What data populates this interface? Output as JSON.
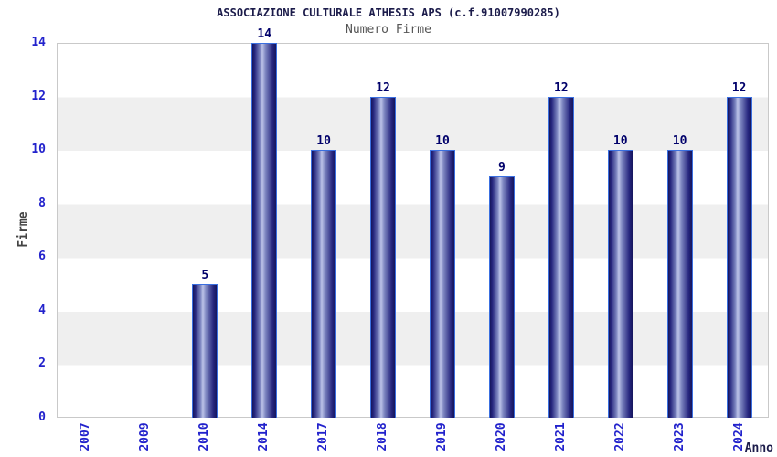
{
  "chart_data": {
    "type": "bar",
    "title": "ASSOCIAZIONE CULTURALE ATHESIS APS (c.f.91007990285)",
    "subtitle": "Numero Firme",
    "xlabel": "Anno",
    "ylabel": "Firme",
    "categories": [
      "2007",
      "2009",
      "2010",
      "2014",
      "2017",
      "2018",
      "2019",
      "2020",
      "2021",
      "2022",
      "2023",
      "2024"
    ],
    "values": [
      0,
      0,
      5,
      14,
      10,
      12,
      10,
      9,
      12,
      10,
      10,
      12
    ],
    "ylim": [
      0,
      14
    ],
    "yticks": [
      0,
      2,
      4,
      6,
      8,
      10,
      12,
      14
    ],
    "bar_value_labels": [
      "5",
      "14",
      "10",
      "12",
      "10",
      "9",
      "12",
      "10",
      "10",
      "12"
    ],
    "grid": "horizontal alternating bands every 2 units, no vertical gridlines",
    "legend_position": "none",
    "colors": {
      "title": "#1b1b4a",
      "subtitle": "#555555",
      "tick_label": "#2222cc",
      "value_label": "#00006a",
      "bar_dark": "#15155c",
      "bar_light": "#bcc3e8",
      "bar_outline": "#3a6fe0",
      "band_gray": "#efefef",
      "band_white": "#ffffff",
      "plot_border": "#c9c9c9",
      "background": "#ffffff"
    }
  }
}
